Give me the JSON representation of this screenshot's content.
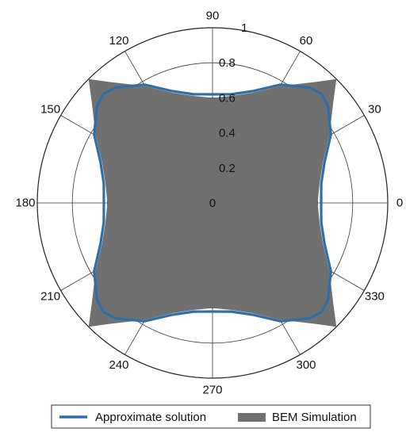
{
  "chart_data": {
    "type": "polar",
    "title": "",
    "angle_unit": "degrees",
    "angle_ticks": [
      0,
      30,
      60,
      90,
      120,
      150,
      180,
      210,
      240,
      270,
      300,
      330
    ],
    "angle_tick_labels": [
      "0",
      "30",
      "60",
      "90",
      "120",
      "150",
      "180",
      "210",
      "240",
      "270",
      "300",
      "330"
    ],
    "r_ticks": [
      0,
      0.2,
      0.4,
      0.6,
      0.8,
      1
    ],
    "r_tick_labels": [
      "0",
      "0.2",
      "0.4",
      "0.6",
      "0.8",
      "1"
    ],
    "rlim": [
      0,
      1
    ],
    "grid": true,
    "legend_position": "bottom",
    "series": [
      {
        "name": "Approximate solution",
        "kind": "line",
        "color": "#2e6fa8",
        "theta": [
          0,
          10,
          20,
          30,
          40,
          45,
          50,
          60,
          70,
          80,
          90
        ],
        "r": [
          0.62,
          0.63,
          0.68,
          0.78,
          0.86,
          0.88,
          0.86,
          0.78,
          0.68,
          0.63,
          0.62
        ],
        "symmetry": "repeats every 90 degrees"
      },
      {
        "name": "BEM Simulation",
        "kind": "area",
        "color": "#707070",
        "theta": [
          0,
          10,
          20,
          30,
          40,
          45,
          50,
          60,
          70,
          80,
          90
        ],
        "r": [
          0.6,
          0.62,
          0.67,
          0.77,
          0.9,
          1.0,
          0.9,
          0.77,
          0.67,
          0.62,
          0.6
        ],
        "symmetry": "repeats every 90 degrees"
      }
    ]
  }
}
